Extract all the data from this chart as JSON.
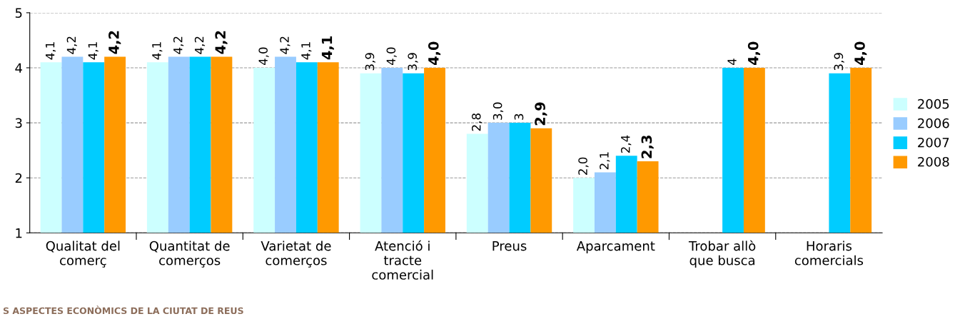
{
  "chart_data": {
    "type": "bar",
    "categories": [
      "Qualitat del\ncomerç",
      "Quantitat de\ncomerços",
      "Varietat de\ncomerços",
      "Atenció i\ntracte\ncomercial",
      "Preus",
      "Aparcament",
      "Trobar allò\nque busca",
      "Horaris\ncomercials"
    ],
    "series": [
      {
        "name": "2005",
        "color": "#ccffff",
        "values": [
          4.1,
          4.1,
          4.0,
          3.9,
          2.8,
          2.0,
          null,
          null
        ],
        "value_labels": [
          "4,1",
          "4,1",
          "4,0",
          "3,9",
          "2,8",
          "2,0",
          null,
          null
        ]
      },
      {
        "name": "2006",
        "color": "#99ccff",
        "values": [
          4.2,
          4.2,
          4.2,
          4.0,
          3.0,
          2.1,
          null,
          null
        ],
        "value_labels": [
          "4,2",
          "4,2",
          "4,2",
          "4,0",
          "3,0",
          "2,1",
          null,
          null
        ]
      },
      {
        "name": "2007",
        "color": "#00ccff",
        "values": [
          4.1,
          4.2,
          4.1,
          3.9,
          3,
          2.4,
          4,
          3.9
        ],
        "value_labels": [
          "4,1",
          "4,2",
          "4,1",
          "3,9",
          "3",
          "2,4",
          "4",
          "3,9"
        ]
      },
      {
        "name": "2008",
        "color": "#ff9900",
        "values": [
          4.2,
          4.2,
          4.1,
          4.0,
          2.9,
          2.3,
          4.0,
          4.0
        ],
        "value_labels": [
          "4,2",
          "4,2",
          "4,1",
          "4,0",
          "2,9",
          "2,3",
          "4,0",
          "4,0"
        ]
      }
    ],
    "ylim": [
      1,
      5
    ],
    "yticks": [
      1,
      2,
      3,
      4,
      5
    ],
    "grid": "y",
    "legend": "right",
    "annotations": [
      "S ASPECTES ECONÒMICS DE LA CIUTAT DE REUS"
    ]
  }
}
